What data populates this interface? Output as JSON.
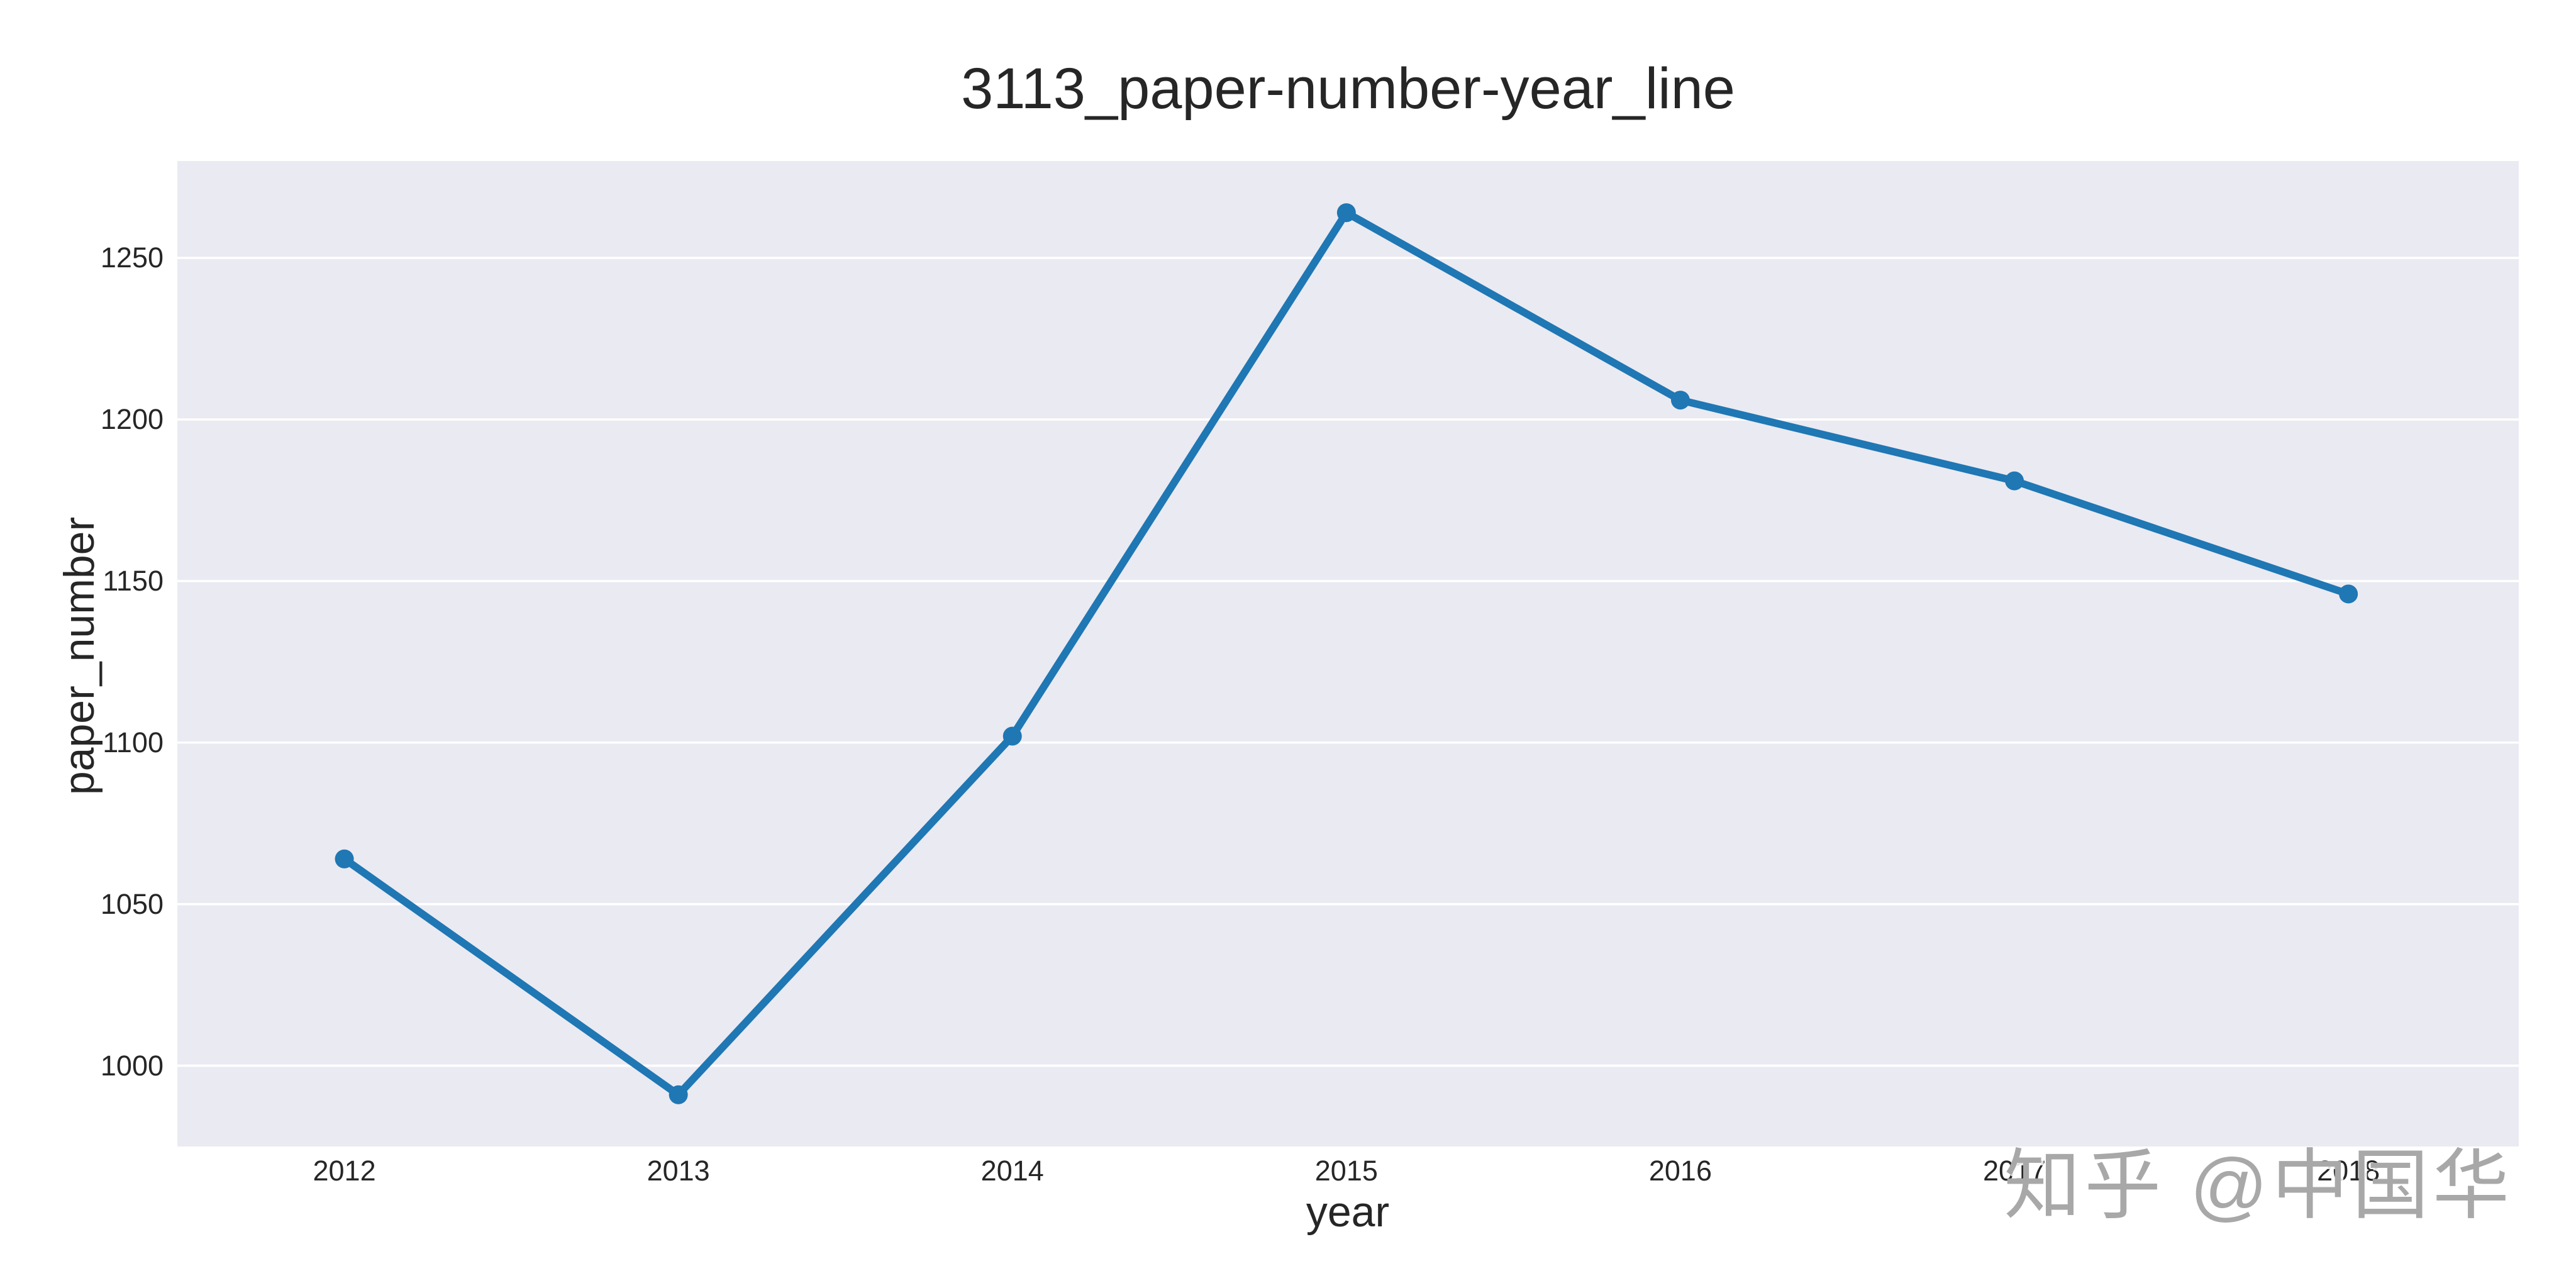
{
  "chart_data": {
    "type": "line",
    "title": "3113_paper-number-year_line",
    "xlabel": "year",
    "ylabel": "paper_number",
    "x": [
      2012,
      2013,
      2014,
      2015,
      2016,
      2017,
      2018
    ],
    "series": [
      {
        "name": "paper_number",
        "values": [
          1064,
          991,
          1102,
          1264,
          1206,
          1181,
          1146
        ]
      }
    ],
    "xtick_labels": [
      "2012",
      "2013",
      "2014",
      "2015",
      "2016",
      "2017",
      "2018"
    ],
    "ytick_values": [
      1000,
      1050,
      1100,
      1150,
      1200,
      1250
    ],
    "ytick_labels": [
      "1000",
      "1050",
      "1100",
      "1150",
      "1200",
      "1250"
    ],
    "xlim": [
      2011.5,
      2018.51
    ],
    "ylim": [
      975,
      1280
    ],
    "grid": true,
    "legend": false,
    "style": {
      "line_color": "#1f77b4",
      "marker_color": "#1f77b4",
      "plot_bg": "#eaeaf2",
      "grid_color": "#ffffff",
      "text_color": "#262626",
      "page_bg": "#ffffff",
      "line_width": 12,
      "marker_radius": 15,
      "grid_width": 3.5
    }
  },
  "watermark": {
    "text": "知乎 @中国华",
    "color": "#a8a8a8"
  }
}
